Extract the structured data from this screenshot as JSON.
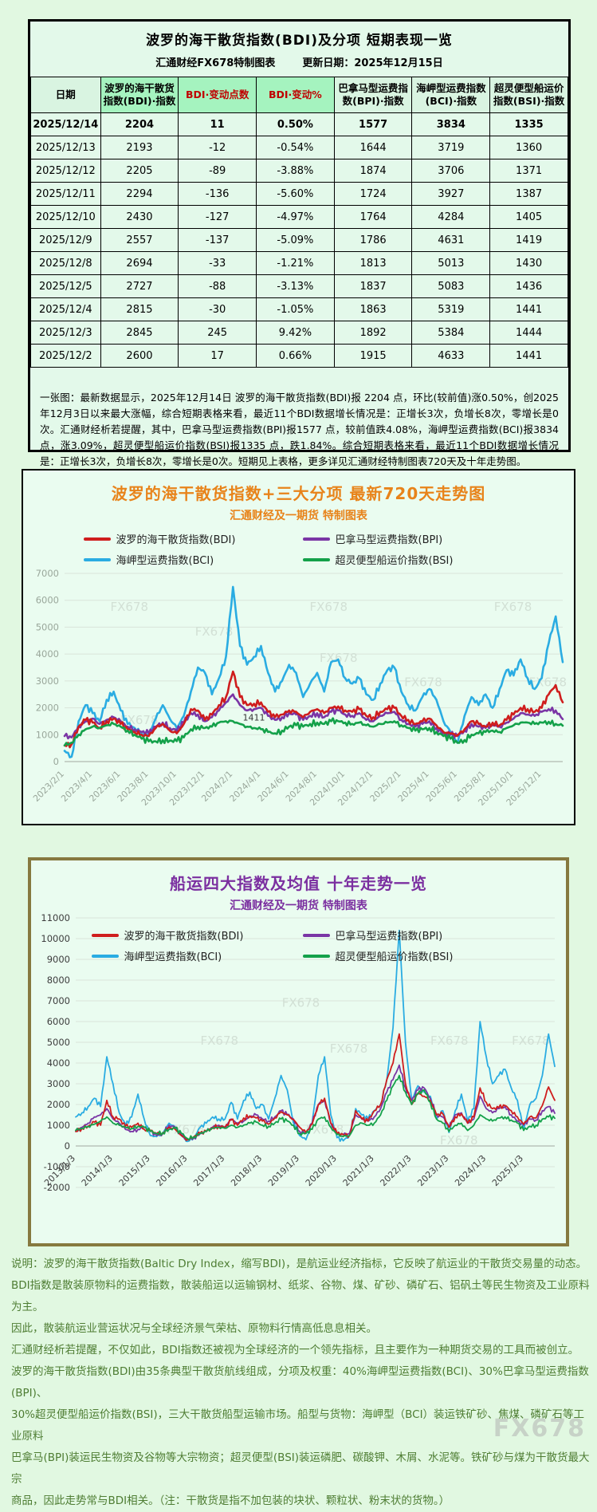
{
  "page": {
    "watermark": "FX678",
    "background": "#e1f8e1"
  },
  "table_panel": {
    "title": "波罗的海干散货指数(BDI)及分项  短期表现一览",
    "subtitle_left": "汇通财经FX678特制图表",
    "subtitle_right": "更新日期：2025年12月15日",
    "headers": [
      "日期",
      "波罗的海干散货指数(BDI)·指数",
      "BDI·变动点数",
      "BDI·变动%",
      "巴拿马型运费指数(BPI)·指数",
      "海岬型运费指数(BCI)·指数",
      "超灵便型船运价指数(BSI)·指数"
    ],
    "header_highlight_cols": [
      1,
      2,
      3
    ],
    "header_red_cols": [
      2,
      3
    ],
    "rows": [
      [
        "2025/12/14",
        "2204",
        "11",
        "0.50%",
        "1577",
        "3834",
        "1335"
      ],
      [
        "2025/12/13",
        "2193",
        "-12",
        "-0.54%",
        "1644",
        "3719",
        "1360"
      ],
      [
        "2025/12/12",
        "2205",
        "-89",
        "-3.88%",
        "1874",
        "3706",
        "1371"
      ],
      [
        "2025/12/11",
        "2294",
        "-136",
        "-5.60%",
        "1724",
        "3927",
        "1387"
      ],
      [
        "2025/12/10",
        "2430",
        "-127",
        "-4.97%",
        "1764",
        "4284",
        "1405"
      ],
      [
        "2025/12/9",
        "2557",
        "-137",
        "-5.09%",
        "1786",
        "4631",
        "1419"
      ],
      [
        "2025/12/8",
        "2694",
        "-33",
        "-1.21%",
        "1813",
        "5013",
        "1430"
      ],
      [
        "2025/12/5",
        "2727",
        "-88",
        "-3.13%",
        "1837",
        "5083",
        "1436"
      ],
      [
        "2025/12/4",
        "2815",
        "-30",
        "-1.05%",
        "1863",
        "5319",
        "1441"
      ],
      [
        "2025/12/3",
        "2845",
        "245",
        "9.42%",
        "1892",
        "5384",
        "1444"
      ],
      [
        "2025/12/2",
        "2600",
        "17",
        "0.66%",
        "1915",
        "4633",
        "1441"
      ]
    ],
    "note": "一张图：最新数据显示，2025年12月14日 波罗的海干散货指数(BDI)报 2204 点，环比(较前值)涨0.50%，创2025年12月3日以来最大涨幅，综合短期表格来看，最近11个BDI数据增长情况是：正增长3次，负增长8次，零增长是0次。汇通财经析若提醒，其中，巴拿马型运费指数(BPI)报1577 点，较前值跌4.08%，海岬型运费指数(BCI)报3834 点，涨3.09%，超灵便型船运价指数(BSI)报1335 点，跌1.84%。综合短期表格来看，最近11个BDI数据增长情况是：正增长3次，负增长8次，零增长是0次。短期见上表格，更多详见汇通财经特制图表720天及十年走势图。"
  },
  "chart_data": [
    {
      "type": "line",
      "id": "chart720",
      "title": "波罗的海干散货指数+三大分项  最新720天走势图",
      "subtitle": "汇通财经及一期货 特制图表",
      "title_color": "#e8831a",
      "ylim": [
        0,
        7000
      ],
      "ytick_step": 1000,
      "grid": true,
      "legend_position": "top",
      "axis_color": "#9aa79b",
      "xtick_idx_step": 4,
      "x_tick_labels": [
        "2023/2/1",
        "2023/4/1",
        "2023/6/1",
        "2023/8/1",
        "2023/10/1",
        "2023/12/1",
        "2024/2/1",
        "2024/4/1",
        "2024/6/1",
        "2024/8/1",
        "2024/10/1",
        "2024/12/1",
        "2025/2/1",
        "2025/4/1",
        "2025/6/1",
        "2025/8/1",
        "2025/10/1",
        "2025/12/1"
      ],
      "annotation": {
        "text": "1411",
        "x_frac": 0.38,
        "value": 1411
      },
      "watermark_text": "FX678",
      "watermarks": [
        [
          0.13,
          0.2
        ],
        [
          0.53,
          0.2
        ],
        [
          0.9,
          0.2
        ],
        [
          0.3,
          0.33
        ],
        [
          0.55,
          0.47
        ],
        [
          0.72,
          0.6
        ],
        [
          0.97,
          0.6
        ],
        [
          0.15,
          0.8
        ]
      ],
      "series": [
        {
          "name": "海岬型运费指数(BCI)",
          "color": "#2aace2",
          "values": [
            400,
            180,
            1500,
            2100,
            1800,
            1500,
            2300,
            2600,
            1900,
            1400,
            1250,
            1050,
            1000,
            1600,
            2100,
            1600,
            1250,
            1700,
            2600,
            3500,
            3300,
            2500,
            3100,
            3900,
            6500,
            4300,
            3600,
            3900,
            4300,
            3300,
            2600,
            3000,
            3600,
            3300,
            2400,
            2900,
            3300,
            2600,
            3700,
            3800,
            3100,
            2900,
            3100,
            2500,
            2300,
            2900,
            3400,
            3500,
            2600,
            2100,
            1900,
            2400,
            2700,
            2300,
            1500,
            1100,
            700,
            1700,
            2400,
            2100,
            2500,
            2000,
            2700,
            3400,
            3200,
            3800,
            3100,
            2700,
            3100,
            4400,
            5400,
            3700
          ]
        },
        {
          "name": "巴拿马型运费指数(BPI)",
          "color": "#7a35a5",
          "values": [
            950,
            900,
            1300,
            1500,
            1600,
            1400,
            1550,
            1650,
            1500,
            1300,
            1200,
            1100,
            1050,
            1300,
            1450,
            1250,
            1150,
            1450,
            1800,
            1750,
            1500,
            1650,
            1900,
            2200,
            2500,
            2100,
            1900,
            1950,
            2000,
            1700,
            1550,
            1650,
            1800,
            1750,
            1550,
            1700,
            1800,
            1650,
            1850,
            1900,
            1750,
            1700,
            1800,
            1550,
            1500,
            1700,
            1800,
            1850,
            1550,
            1400,
            1300,
            1400,
            1500,
            1250,
            1050,
            1000,
            950,
            1150,
            1400,
            1300,
            1250,
            1350,
            1300,
            1450,
            1600,
            1800,
            1750,
            1700,
            1850,
            1950,
            1900,
            1577
          ]
        },
        {
          "name": "波罗的海干散货指数(BDI)",
          "color": "#cf1d1d",
          "values": [
            600,
            650,
            1300,
            1550,
            1450,
            1250,
            1500,
            1600,
            1400,
            1200,
            1100,
            1000,
            950,
            1250,
            1400,
            1150,
            1050,
            1400,
            1950,
            1900,
            1550,
            1750,
            2100,
            2400,
            3350,
            2400,
            2100,
            2150,
            2200,
            1850,
            1650,
            1750,
            1900,
            1850,
            1650,
            1850,
            1950,
            1800,
            2000,
            2050,
            1900,
            1850,
            1950,
            1700,
            1650,
            1850,
            1950,
            2000,
            1700,
            1550,
            1400,
            1500,
            1600,
            1350,
            1100,
            1050,
            980,
            1200,
            1500,
            1400,
            1300,
            1450,
            1350,
            1550,
            1750,
            2000,
            1950,
            1850,
            2000,
            2500,
            2845,
            2204
          ]
        },
        {
          "name": "超灵便型船运价指数(BSI)",
          "color": "#14a14a",
          "values": [
            600,
            700,
            1000,
            1200,
            1300,
            1250,
            1350,
            1400,
            1300,
            1150,
            1000,
            850,
            750,
            750,
            800,
            780,
            760,
            900,
            1200,
            1300,
            1250,
            1300,
            1450,
            1500,
            1500,
            1400,
            1300,
            1250,
            1200,
            1100,
            1050,
            1150,
            1300,
            1350,
            1300,
            1400,
            1450,
            1400,
            1500,
            1500,
            1450,
            1400,
            1450,
            1350,
            1300,
            1400,
            1450,
            1500,
            1350,
            1250,
            1150,
            1200,
            1250,
            1100,
            950,
            850,
            700,
            800,
            1000,
            1050,
            1100,
            1150,
            1100,
            1250,
            1350,
            1450,
            1450,
            1400,
            1450,
            1480,
            1400,
            1335
          ]
        }
      ],
      "legend_order": [
        2,
        1,
        0,
        3
      ]
    },
    {
      "type": "line",
      "id": "chart10y",
      "title": "船运四大指数及均值 十年走势一览",
      "subtitle": "汇通财经及一期货 特制图表",
      "title_color": "#7b2fa0",
      "ylim": [
        -2000,
        11000
      ],
      "ytick_step": 1000,
      "grid": true,
      "legend_position": "inside-top",
      "axis_color": "#3d3d3d",
      "xtick_idx_step": 6,
      "x_tick_labels": [
        "2013/1/3",
        "2014/1/3",
        "2015/1/3",
        "2016/1/3",
        "2017/1/3",
        "2018/1/3",
        "2019/1/3",
        "2020/1/3",
        "2021/1/3",
        "2022/1/3",
        "2023/1/3",
        "2024/1/3",
        "2025/1/3"
      ],
      "watermark_text": "FX678",
      "watermarks": [
        [
          0.47,
          0.33
        ],
        [
          0.3,
          0.47
        ],
        [
          0.57,
          0.5
        ],
        [
          0.78,
          0.47
        ],
        [
          0.95,
          0.47
        ],
        [
          0.23,
          0.8
        ],
        [
          0.52,
          0.8
        ],
        [
          0.8,
          0.84
        ]
      ],
      "series": [
        {
          "name": "海岬型运费指数(BCI)",
          "color": "#2aace2",
          "values": [
            1400,
            1600,
            1900,
            2300,
            1900,
            4300,
            3000,
            1600,
            1000,
            1400,
            2500,
            1300,
            500,
            450,
            600,
            1100,
            900,
            500,
            220,
            400,
            900,
            1100,
            1400,
            1300,
            1300,
            2100,
            1300,
            2200,
            2600,
            1800,
            2000,
            1300,
            2300,
            3400,
            2700,
            1100,
            500,
            300,
            1100,
            3400,
            4300,
            1500,
            400,
            250,
            500,
            1800,
            1500,
            1300,
            1700,
            2000,
            3200,
            5700,
            10400,
            5000,
            2200,
            2900,
            2600,
            2400,
            1300,
            1700,
            650,
            1700,
            2500,
            1200,
            1800,
            6000,
            4300,
            3000,
            3400,
            3700,
            2800,
            2200,
            800,
            2000,
            2300,
            3400,
            5400,
            3834
          ]
        },
        {
          "name": "巴拿马型运费指数(BPI)",
          "color": "#7a35a5",
          "values": [
            700,
            900,
            1100,
            1400,
            1500,
            1800,
            1300,
            1100,
            800,
            700,
            800,
            900,
            700,
            500,
            600,
            1000,
            900,
            500,
            300,
            400,
            600,
            700,
            900,
            1000,
            900,
            1300,
            1100,
            1200,
            1400,
            1500,
            1300,
            1200,
            1400,
            1700,
            1500,
            1300,
            700,
            650,
            1100,
            2000,
            2200,
            1100,
            600,
            550,
            600,
            1500,
            1300,
            1200,
            1400,
            1800,
            2600,
            3200,
            3900,
            2800,
            2200,
            2700,
            2800,
            2300,
            1500,
            1400,
            900,
            1500,
            1600,
            1100,
            1300,
            2400,
            1800,
            1600,
            1800,
            1900,
            1500,
            1200,
            1000,
            1300,
            1250,
            1700,
            1900,
            1577
          ]
        },
        {
          "name": "波罗的海干散货指数(BDI)",
          "color": "#cf1d1d",
          "values": [
            700,
            850,
            950,
            1150,
            1000,
            2200,
            1400,
            1300,
            950,
            900,
            1100,
            800,
            750,
            600,
            600,
            900,
            800,
            500,
            300,
            450,
            620,
            700,
            900,
            950,
            900,
            1250,
            1000,
            1350,
            1450,
            1350,
            1200,
            1050,
            1350,
            1650,
            1500,
            1270,
            900,
            650,
            1050,
            2000,
            2300,
            1100,
            600,
            550,
            500,
            1700,
            1300,
            1200,
            1700,
            2000,
            3200,
            4000,
            5400,
            3000,
            2000,
            2550,
            2400,
            2200,
            1500,
            1550,
            900,
            1400,
            1550,
            1100,
            1400,
            2800,
            2100,
            1800,
            1850,
            1950,
            1700,
            1400,
            1050,
            1400,
            1350,
            1950,
            2845,
            2204
          ]
        },
        {
          "name": "超灵便型船运价指数(BSI)",
          "color": "#14a14a",
          "values": [
            750,
            850,
            950,
            1050,
            1200,
            1400,
            1100,
            1000,
            900,
            850,
            950,
            900,
            700,
            600,
            650,
            800,
            850,
            600,
            350,
            450,
            600,
            700,
            850,
            900,
            850,
            1000,
            900,
            1000,
            1100,
            1150,
            1000,
            950,
            1100,
            1300,
            1200,
            1000,
            600,
            600,
            800,
            1300,
            1400,
            900,
            550,
            450,
            500,
            1000,
            1100,
            1000,
            1100,
            1500,
            2200,
            2900,
            3400,
            2600,
            2000,
            2500,
            2700,
            2100,
            1300,
            1100,
            700,
            1000,
            1100,
            750,
            1000,
            1500,
            1300,
            1200,
            1350,
            1400,
            1250,
            1100,
            750,
            950,
            1000,
            1300,
            1400,
            1335
          ]
        }
      ],
      "legend_order": [
        2,
        1,
        0,
        3
      ]
    }
  ],
  "footer": {
    "lines": [
      "说明：波罗的海干散货指数(Baltic Dry Index，缩写BDI)，是航运业经济指标，它反映了航运业的干散货交易量的动态。",
      "BDI指数是散装原物料的运费指数，散装船运以运输钢材、纸浆、谷物、煤、矿砂、磷矿石、铝矾土等民生物资及工业原料为主。",
      "因此，散装航运业营运状况与全球经济景气荣枯、原物料行情高低息息相关。",
      "汇通财经析若提醒，不仅如此，BDI指数还被视为全球经济的一个领先指标，且主要作为一种期货交易的工具而被创立。",
      "波罗的海干散货指数(BDI)由35条典型干散货航线组成，分项及权重：40%海岬型运费指数(BCI)、30%巴拿马型运费指数(BPI)、",
      "30%超灵便型船运价指数(BSI)，三大干散货船型运输市场。船型与货物：海岬型（BCI）装运铁矿砂、焦煤、磷矿石等工业原料",
      "巴拿马(BPI)装运民生物资及谷物等大宗物资；超灵便型(BSI)装运磷肥、碳酸钾、木屑、水泥等。铁矿砂与煤为干散货最大宗",
      "商品，因此走势常与BDI相关。（注：干散货是指不加包装的块状、颗粒状、粉末状的货物。）"
    ]
  }
}
